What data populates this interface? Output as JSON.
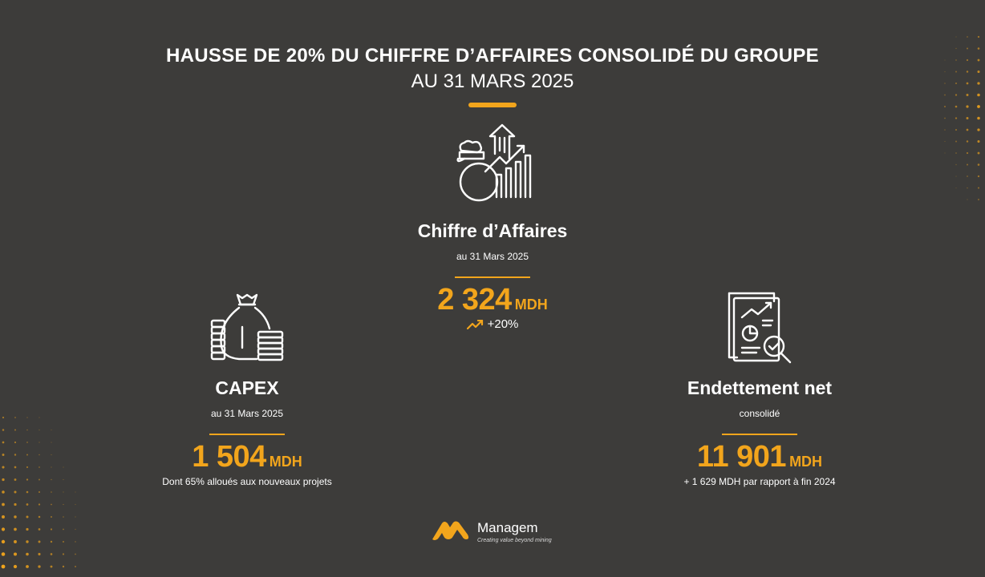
{
  "header": {
    "title": "HAUSSE DE 20% DU CHIFFRE D’AFFAIRES CONSOLIDÉ DU GROUPE",
    "subtitle": "AU 31 MARS 2025"
  },
  "kpis": {
    "revenue": {
      "title": "Chiffre d’Affaires",
      "subtitle": "au 31 Mars 2025",
      "value": "2 324",
      "unit": "MDH",
      "growth": "+20%",
      "icon": "money-growth-chart-icon"
    },
    "capex": {
      "title": "CAPEX",
      "subtitle": "au 31 Mars 2025",
      "value": "1 504",
      "unit": "MDH",
      "note": "Dont 65% alloués aux nouveaux projets",
      "icon": "money-bag-coins-icon"
    },
    "debt": {
      "title": "Endettement net",
      "subtitle": "consolidé",
      "value": "11 901",
      "unit": "MDH",
      "note": "+ 1 629 MDH par rapport à fin 2024",
      "icon": "report-magnifier-icon"
    }
  },
  "brand": {
    "name": "Managem",
    "tagline": "Creating value beyond mining"
  },
  "colors": {
    "background": "#3d3c3a",
    "accent": "#f2a51c",
    "text": "#ffffff"
  }
}
